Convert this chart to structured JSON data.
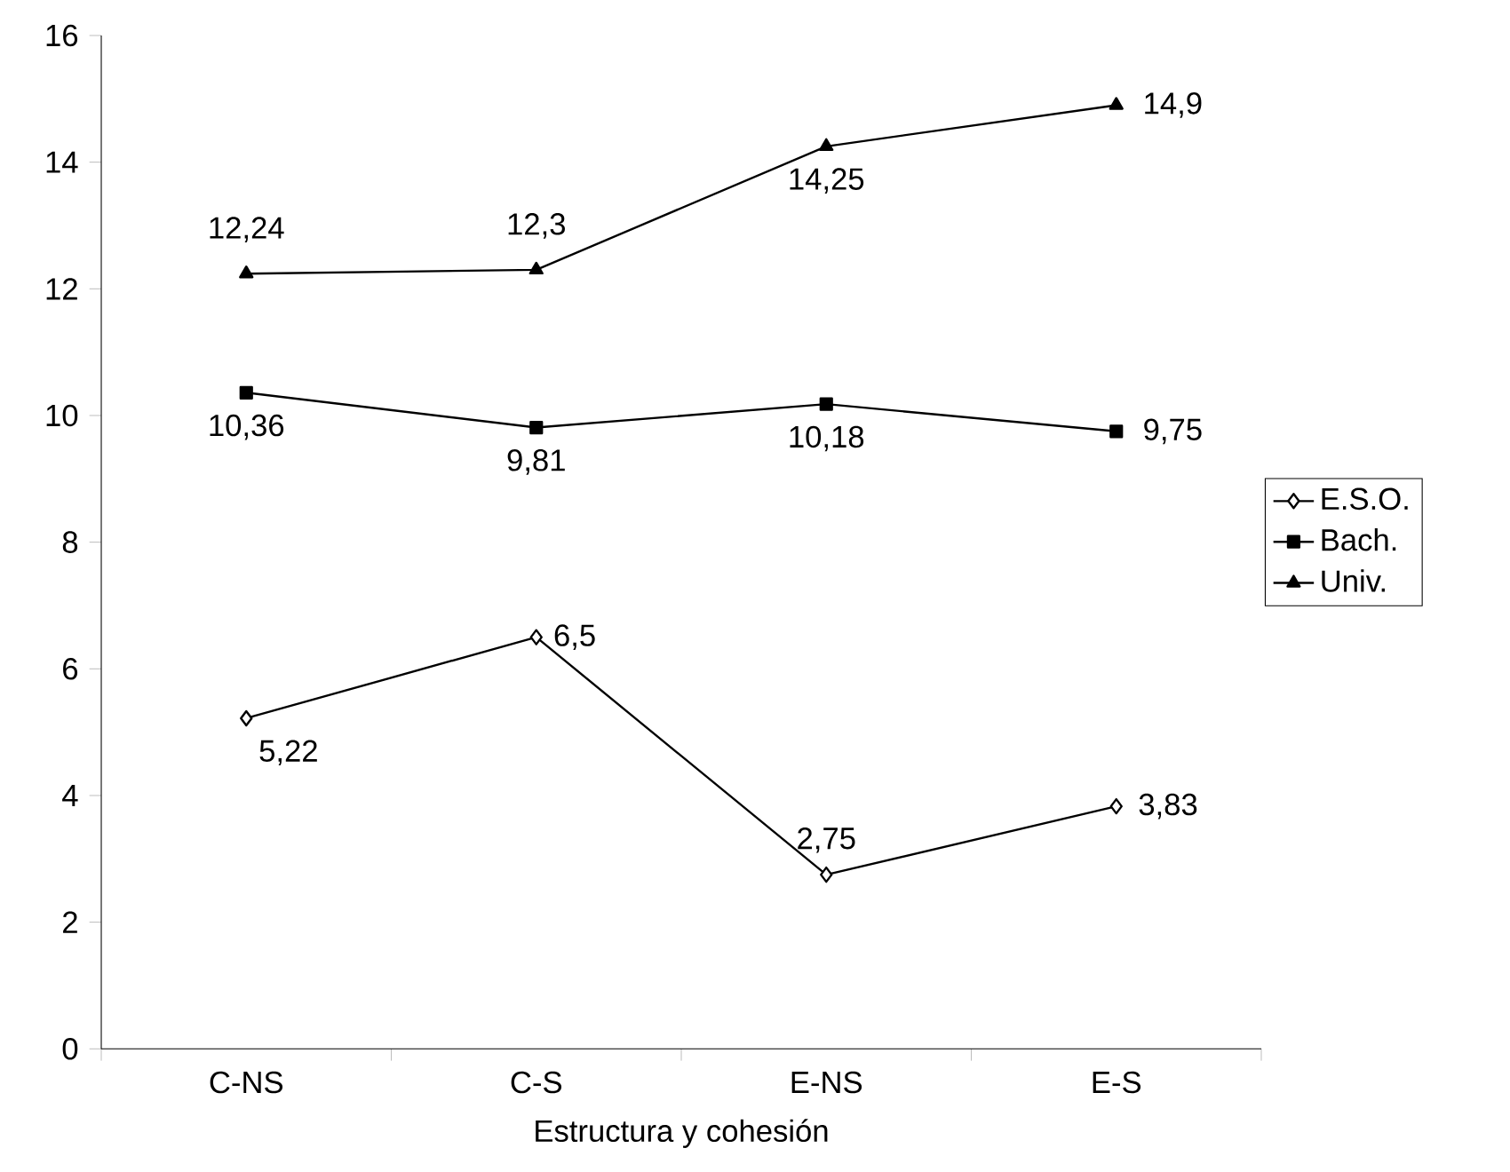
{
  "chart_data": {
    "type": "line",
    "xlabel": "Estructura y cohesión",
    "categories": [
      "C-NS",
      "C-S",
      "E-NS",
      "E-S"
    ],
    "series": [
      {
        "name": "E.S.O.",
        "color": "#000000",
        "marker": "diamond",
        "values": [
          5.22,
          6.5,
          2.75,
          3.83
        ],
        "value_labels": [
          "5,22",
          "6,5",
          "2,75",
          "3,83"
        ]
      },
      {
        "name": "Bach.",
        "color": "#000000",
        "marker": "square",
        "values": [
          10.36,
          9.81,
          10.18,
          9.75
        ],
        "value_labels": [
          "10,36",
          "9,81",
          "10,18",
          "9,75"
        ]
      },
      {
        "name": "Univ.",
        "color": "#000000",
        "marker": "triangle",
        "values": [
          12.24,
          12.3,
          14.25,
          14.9
        ],
        "value_labels": [
          "12,24",
          "12,3",
          "14,25",
          "14,9"
        ]
      }
    ],
    "ylim": [
      0,
      16
    ],
    "yticks": [
      0,
      2,
      4,
      6,
      8,
      10,
      12,
      14,
      16
    ],
    "grid": false,
    "legend": "right",
    "line_style": "solid"
  }
}
